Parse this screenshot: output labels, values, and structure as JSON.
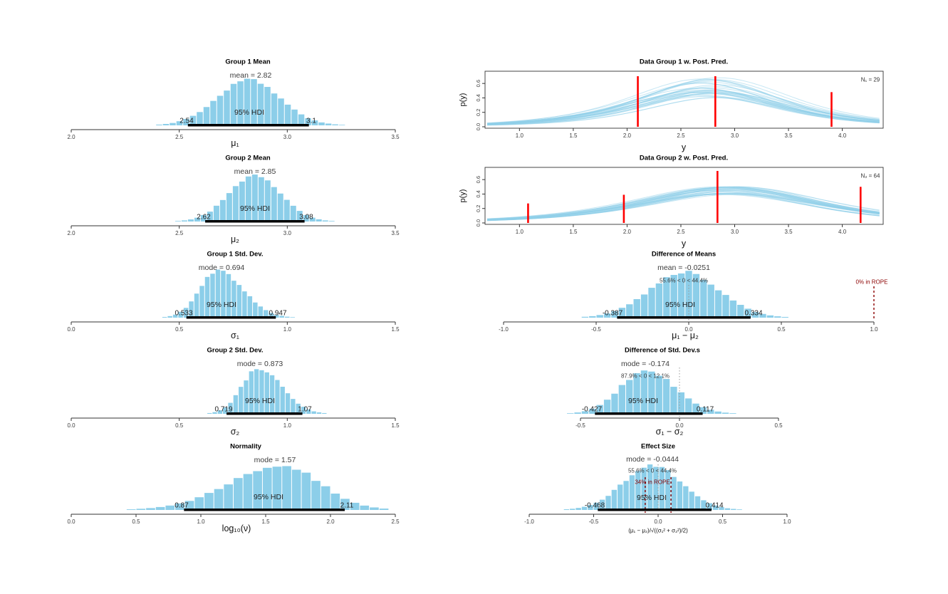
{
  "figure": {
    "background": "#ffffff"
  },
  "colors": {
    "bar": "#8CCEE9",
    "curve": "#8FD0EA",
    "data_line": "#FF0000",
    "hdi_bar": "#000000",
    "rope": "#8B0000",
    "zero_line": "#999999",
    "axis": "#333333"
  },
  "chart_data": [
    {
      "id": "group1-mean",
      "type": "histogram",
      "title": "Group 1 Mean",
      "stat_label": "mean = 2.82",
      "stat_value": 2.82,
      "hdi": {
        "label": "95% HDI",
        "low": 2.54,
        "high": 3.1,
        "low_label": "2.54",
        "high_label": "3.1"
      },
      "xlabel": "μ₁",
      "xlim": [
        2.0,
        3.5
      ],
      "ticks": {
        "values": [
          2.0,
          2.5,
          3.0,
          3.5
        ],
        "labels": [
          "2.0",
          "2.5",
          "3.0",
          "3.5"
        ]
      },
      "dist": {
        "center": 2.82,
        "sd_left": 0.145,
        "sd_right": 0.145,
        "from": 2.36,
        "to": 3.3,
        "bins": 30,
        "seed": 3
      }
    },
    {
      "id": "group2-mean",
      "type": "histogram",
      "title": "Group 2 Mean",
      "stat_label": "mean = 2.85",
      "stat_value": 2.85,
      "hdi": {
        "label": "95% HDI",
        "low": 2.62,
        "high": 3.08,
        "low_label": "2.62",
        "high_label": "3.08"
      },
      "xlabel": "μ₂",
      "xlim": [
        2.0,
        3.5
      ],
      "ticks": {
        "values": [
          2.0,
          2.5,
          3.0,
          3.5
        ],
        "labels": [
          "2.0",
          "2.5",
          "3.0",
          "3.5"
        ]
      },
      "dist": {
        "center": 2.85,
        "sd_left": 0.12,
        "sd_right": 0.12,
        "from": 2.45,
        "to": 3.25,
        "bins": 27,
        "seed": 4
      }
    },
    {
      "id": "group1-sd",
      "type": "histogram",
      "title": "Group 1 Std. Dev.",
      "stat_label": "mode = 0.694",
      "stat_value": 0.694,
      "hdi": {
        "label": "95% HDI",
        "low": 0.533,
        "high": 0.947,
        "low_label": "0.533",
        "high_label": "0.947"
      },
      "xlabel": "σ₁",
      "xlim": [
        0.0,
        1.5
      ],
      "ticks": {
        "values": [
          0.0,
          0.5,
          1.0,
          1.5
        ],
        "labels": [
          "0.0",
          "0.5",
          "1.0",
          "1.5"
        ]
      },
      "dist": {
        "center": 0.68,
        "sd_left": 0.085,
        "sd_right": 0.115,
        "from": 0.42,
        "to": 1.16,
        "bins": 30,
        "seed": 5
      }
    },
    {
      "id": "group2-sd",
      "type": "histogram",
      "title": "Group 2 Std. Dev.",
      "stat_label": "mode = 0.873",
      "stat_value": 0.873,
      "hdi": {
        "label": "95% HDI",
        "low": 0.719,
        "high": 1.07,
        "low_label": "0.719",
        "high_label": "1.07"
      },
      "xlabel": "σ₂",
      "xlim": [
        0.0,
        1.5
      ],
      "ticks": {
        "values": [
          0.0,
          0.5,
          1.0,
          1.5
        ],
        "labels": [
          "0.0",
          "0.5",
          "1.0",
          "1.5"
        ]
      },
      "dist": {
        "center": 0.87,
        "sd_left": 0.08,
        "sd_right": 0.105,
        "from": 0.58,
        "to": 1.28,
        "bins": 29,
        "seed": 6
      }
    },
    {
      "id": "normality",
      "type": "histogram",
      "title": "Normality",
      "stat_label": "mode = 1.57",
      "stat_value": 1.57,
      "hdi": {
        "label": "95% HDI",
        "low": 0.87,
        "high": 2.11,
        "low_label": "0.87",
        "high_label": "2.11"
      },
      "xlabel": "log₁₀(ν)",
      "xlim": [
        0.0,
        2.5
      ],
      "ticks": {
        "values": [
          0.0,
          0.5,
          1.0,
          1.5,
          2.0,
          2.5
        ],
        "labels": [
          "0.0",
          "0.5",
          "1.0",
          "1.5",
          "2.0",
          "2.5"
        ]
      },
      "dist": {
        "center": 1.62,
        "sd_left": 0.4,
        "sd_right": 0.3,
        "from": 0.35,
        "to": 2.45,
        "bins": 28,
        "seed": 7
      }
    },
    {
      "id": "post-pred-1",
      "type": "posterior-predictive",
      "title": "Data Group 1 w. Post. Pred.",
      "n_label": "N₁ = 29",
      "xlabel": "y",
      "ylabel": "p(y)",
      "xlim": [
        0.68,
        4.38
      ],
      "ylim": [
        0,
        0.73
      ],
      "ticks": {
        "values": [
          1.0,
          1.5,
          2.0,
          2.5,
          3.0,
          3.5,
          4.0
        ],
        "labels": [
          "1.0",
          "1.5",
          "2.0",
          "2.5",
          "3.0",
          "3.5",
          "4.0"
        ]
      },
      "y_ticks": {
        "values": [
          0.0,
          0.2,
          0.4,
          0.6
        ],
        "labels": [
          "0.0",
          "0.2",
          "0.4",
          "0.6"
        ]
      },
      "curves": {
        "count": 30,
        "center": 2.76,
        "center_jitter": 0.11,
        "scale": 0.72,
        "scale_jitter": 0.1,
        "peak": 0.54,
        "peak_jitter": 0.15,
        "seed": 41
      },
      "data_lines": [
        {
          "x": 2.1,
          "height": 0.7
        },
        {
          "x": 2.82,
          "height": 0.7
        },
        {
          "x": 3.9,
          "height": 0.48
        }
      ]
    },
    {
      "id": "post-pred-2",
      "type": "posterior-predictive",
      "title": "Data Group 2 w. Post. Pred.",
      "n_label": "N₂ = 64",
      "xlabel": "y",
      "ylabel": "p(y)",
      "xlim": [
        0.68,
        4.38
      ],
      "ylim": [
        0,
        0.73
      ],
      "ticks": {
        "values": [
          1.0,
          1.5,
          2.0,
          2.5,
          3.0,
          3.5,
          4.0
        ],
        "labels": [
          "1.0",
          "1.5",
          "2.0",
          "2.5",
          "3.0",
          "3.5",
          "4.0"
        ]
      },
      "y_ticks": {
        "values": [
          0.0,
          0.2,
          0.4,
          0.6
        ],
        "labels": [
          "0.0",
          "0.2",
          "0.4",
          "0.6"
        ]
      },
      "curves": {
        "count": 30,
        "center": 2.95,
        "center_jitter": 0.09,
        "scale": 0.88,
        "scale_jitter": 0.09,
        "peak": 0.45,
        "peak_jitter": 0.06,
        "seed": 42
      },
      "data_lines": [
        {
          "x": 1.08,
          "height": 0.27
        },
        {
          "x": 1.97,
          "height": 0.39
        },
        {
          "x": 2.84,
          "height": 0.72
        },
        {
          "x": 4.17,
          "height": 0.5
        }
      ]
    },
    {
      "id": "diff-means",
      "type": "histogram",
      "title": "Difference of Means",
      "stat_label": "mean = -0.0251",
      "stat_value": -0.0251,
      "pct_label": "55.6% < 0 < 44.4%",
      "rope": {
        "label": "0% in ROPE",
        "lines": [
          1.0
        ]
      },
      "zero_line": 0,
      "hdi": {
        "label": "95% HDI",
        "low": -0.387,
        "high": 0.334,
        "low_label": "-0.387",
        "high_label": "0.334"
      },
      "xlabel": "μ₁ − μ₂",
      "xlim": [
        -1.0,
        1.0
      ],
      "ticks": {
        "values": [
          -1.0,
          -0.5,
          0.0,
          0.5,
          1.0
        ],
        "labels": [
          "-1.0",
          "-0.5",
          "0.0",
          "0.5",
          "1.0"
        ]
      },
      "dist": {
        "center": -0.025,
        "sd_left": 0.19,
        "sd_right": 0.19,
        "from": -0.62,
        "to": 0.58,
        "bins": 30,
        "seed": 8
      }
    },
    {
      "id": "diff-sds",
      "type": "histogram",
      "title": "Difference of Std. Dev.s",
      "stat_label": "mode = -0.174",
      "stat_value": -0.174,
      "pct_label": "87.9% < 0 < 12.1%",
      "zero_line": 0,
      "hdi": {
        "label": "95% HDI",
        "low": -0.427,
        "high": 0.117,
        "low_label": "-0.427",
        "high_label": "0.117"
      },
      "xlabel": "σ₁ − σ₂",
      "xlim": [
        -0.5,
        0.5
      ],
      "ticks": {
        "values": [
          -0.5,
          0.0,
          0.5
        ],
        "labels": [
          "-0.5",
          "0.0",
          "0.5"
        ]
      },
      "dist": {
        "center": -0.17,
        "sd_left": 0.13,
        "sd_right": 0.15,
        "from": -0.57,
        "to": 0.4,
        "bins": 26,
        "seed": 9
      }
    },
    {
      "id": "effect-size",
      "type": "histogram",
      "title": "Effect Size",
      "stat_label": "mode = -0.0444",
      "stat_value": -0.0444,
      "pct_label": "55.6% < 0 < 44.4%",
      "rope": {
        "label": "34% in ROPE",
        "lines": [
          -0.1,
          0.1
        ]
      },
      "zero_line": 0,
      "hdi": {
        "label": "95% HDI",
        "low": -0.468,
        "high": 0.414,
        "low_label": "-0.468",
        "high_label": "0.414"
      },
      "xlabel": "(μ₁ − μ₂)/√((σ₁² + σ₂²)/2)",
      "xlim": [
        -1.0,
        1.0
      ],
      "ticks": {
        "values": [
          -1.0,
          -0.5,
          0.0,
          0.5,
          1.0
        ],
        "labels": [
          "-1.0",
          "-0.5",
          "0.0",
          "0.5",
          "1.0"
        ]
      },
      "dist": {
        "center": -0.045,
        "sd_left": 0.23,
        "sd_right": 0.23,
        "from": -0.78,
        "to": 0.7,
        "bins": 32,
        "seed": 10
      }
    }
  ]
}
